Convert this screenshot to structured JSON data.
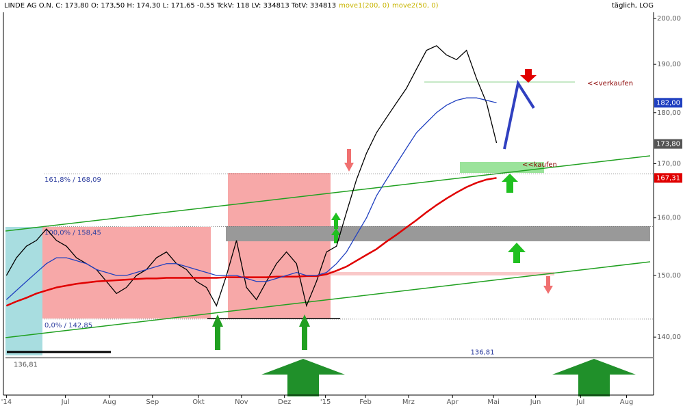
{
  "header": {
    "info": "LINDE AG O.N. C: 173,80 O: 173,50 H: 174,30 L: 171,65 -0,55 TckV: 118 LV: 334813 TotV: 334813",
    "mode": "täglich, LOG"
  },
  "chart_data": {
    "type": "line",
    "log_scale": true,
    "xlim": [
      -0.3,
      64.7
    ],
    "ylim": [
      131.2,
      201.4
    ],
    "xticks": [
      {
        "value": 0,
        "label": "'14"
      },
      {
        "value": 5.9,
        "label": "Jul"
      },
      {
        "value": 10.3,
        "label": "Aug"
      },
      {
        "value": 14.6,
        "label": "Sep"
      },
      {
        "value": 19.2,
        "label": "Okt"
      },
      {
        "value": 23.5,
        "label": "Nov"
      },
      {
        "value": 27.8,
        "label": "Dez"
      },
      {
        "value": 31.9,
        "label": "'15"
      },
      {
        "value": 35.9,
        "label": "Feb"
      },
      {
        "value": 40.2,
        "label": "Mrz"
      },
      {
        "value": 44.6,
        "label": "Apr"
      },
      {
        "value": 48.7,
        "label": "Mai"
      },
      {
        "value": 52.9,
        "label": "Jun"
      },
      {
        "value": 57.4,
        "label": "Jul"
      },
      {
        "value": 62.0,
        "label": "Aug"
      }
    ],
    "yticks": [
      {
        "value": 140,
        "label": "140,00"
      },
      {
        "value": 150,
        "label": "150,00"
      },
      {
        "value": 160,
        "label": "160,00"
      },
      {
        "value": 170,
        "label": "170,00"
      },
      {
        "value": 180,
        "label": "180,00"
      },
      {
        "value": 190,
        "label": "190,00"
      },
      {
        "value": 200,
        "label": "200,00"
      }
    ],
    "series": [
      {
        "color": "#000000",
        "values": [
          150,
          153,
          155,
          156,
          158,
          156,
          155,
          153,
          152,
          151,
          149,
          147,
          148,
          150,
          151,
          153,
          154,
          152,
          151,
          149,
          148,
          145,
          150,
          156,
          148,
          146,
          149,
          152,
          154,
          152,
          145,
          149,
          154,
          155,
          161,
          167,
          172,
          176,
          179,
          182,
          185,
          189,
          193,
          194,
          192,
          191,
          193,
          187,
          182,
          174
        ]
      },
      {
        "name": "move1(200, 0)",
        "color": "#e00000",
        "values": [
          145,
          145.7,
          146.3,
          147,
          147.5,
          148,
          148.3,
          148.6,
          148.8,
          149,
          149.1,
          149.2,
          149.3,
          149.4,
          149.5,
          149.5,
          149.6,
          149.6,
          149.6,
          149.6,
          149.6,
          149.6,
          149.7,
          149.7,
          149.7,
          149.7,
          149.7,
          149.8,
          149.8,
          149.8,
          149.9,
          149.9,
          150.2,
          150.8,
          151.5,
          152.5,
          153.5,
          154.5,
          155.8,
          157,
          158.3,
          159.6,
          161,
          162.3,
          163.5,
          164.6,
          165.6,
          166.4,
          167,
          167.31
        ]
      },
      {
        "name": "move2(50, 0)",
        "color": "#2040c0",
        "values": [
          146,
          147.5,
          149,
          150.5,
          152,
          153,
          153,
          152.5,
          152,
          151,
          150.5,
          150,
          150,
          150.5,
          151,
          151.5,
          152,
          152,
          151.5,
          151,
          150.5,
          150,
          150,
          150,
          149.5,
          149,
          149,
          149.5,
          150,
          150.5,
          150,
          150,
          150.5,
          152,
          154,
          157,
          160,
          164,
          167,
          170,
          173,
          176,
          178,
          180,
          181.5,
          182.5,
          183,
          183,
          182.5,
          182
        ]
      }
    ],
    "price_markers": [
      {
        "value": 182,
        "label": "182,00",
        "color": "#2040c0"
      },
      {
        "value": 173.8,
        "label": "173,80",
        "color": "#555555"
      },
      {
        "value": 167.31,
        "label": "167,31",
        "color": "#e00000"
      }
    ],
    "levels": [
      {
        "value": 168.09,
        "label": "161,8% / 168,09"
      },
      {
        "value": 158.45,
        "label": "100,0% / 158,45"
      },
      {
        "value": 142.85,
        "label": "0,0% / 142,85"
      },
      {
        "value": 136.81,
        "label": "136,81"
      }
    ],
    "annotations": {
      "low_label": "136,81",
      "sell": "<<verkaufen",
      "buy": "<<kaufen"
    }
  }
}
